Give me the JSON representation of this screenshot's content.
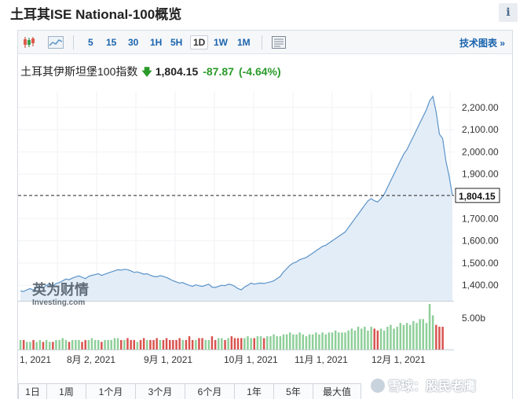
{
  "page": {
    "title": "土耳其ISE National-100概览",
    "info_icon": "i"
  },
  "toolbar": {
    "icons": [
      "candlestick-icon",
      "area-chart-icon",
      "settings-panel-icon"
    ],
    "ranges": [
      "5",
      "15",
      "30",
      "1H",
      "5H",
      "1D",
      "1W",
      "1M"
    ],
    "active_range": "1D",
    "tech_chart_link": "技术图表 »"
  },
  "quote": {
    "name": "土耳其伊斯坦堡100指数",
    "price": "1,804.15",
    "change": "-87.87",
    "change_pct": "(-4.64%)",
    "direction": "down"
  },
  "logo": {
    "text_cn": "英为财情",
    "text_en": "Investing.com"
  },
  "chart_data": {
    "type": "area",
    "current_value_label": "1,804.15",
    "current_value": 1804.15,
    "y_ticks": [
      "2,200.00",
      "2,100.00",
      "2,000.00",
      "1,900.00",
      "1,700.00",
      "1,600.00",
      "1,500.00",
      "1,400.00"
    ],
    "y_tick_values": [
      2200,
      2100,
      2000,
      1900,
      1700,
      1600,
      1500,
      1400
    ],
    "ylim": [
      1330,
      2270
    ],
    "x_ticks": [
      "1, 2021",
      "8月 2, 2021",
      "9月 1, 2021",
      "10月 1, 2021",
      "11月 1, 2021",
      "12月 1, 2021"
    ],
    "volume_label": "5.00b",
    "price_series": [
      1375,
      1372,
      1380,
      1385,
      1378,
      1390,
      1395,
      1388,
      1400,
      1405,
      1398,
      1408,
      1412,
      1420,
      1428,
      1425,
      1432,
      1438,
      1442,
      1436,
      1430,
      1440,
      1445,
      1448,
      1452,
      1444,
      1450,
      1455,
      1460,
      1465,
      1470,
      1468,
      1472,
      1470,
      1465,
      1458,
      1460,
      1455,
      1450,
      1452,
      1445,
      1440,
      1438,
      1443,
      1440,
      1435,
      1428,
      1420,
      1415,
      1410,
      1412,
      1405,
      1400,
      1395,
      1402,
      1398,
      1395,
      1400,
      1405,
      1392,
      1390,
      1395,
      1400,
      1398,
      1405,
      1402,
      1395,
      1385,
      1380,
      1392,
      1400,
      1410,
      1405,
      1408,
      1410,
      1408,
      1412,
      1415,
      1420,
      1430,
      1440,
      1460,
      1475,
      1490,
      1500,
      1505,
      1515,
      1520,
      1525,
      1535,
      1545,
      1555,
      1565,
      1575,
      1580,
      1590,
      1600,
      1610,
      1620,
      1630,
      1640,
      1660,
      1680,
      1700,
      1720,
      1740,
      1760,
      1780,
      1790,
      1780,
      1775,
      1790,
      1810,
      1840,
      1870,
      1900,
      1930,
      1960,
      1990,
      2010,
      2040,
      2070,
      2100,
      2130,
      2160,
      2190,
      2230,
      2250,
      2180,
      2080,
      2060,
      1960,
      1890,
      1804
    ],
    "volume_series": [
      0.5,
      0.5,
      0.4,
      0.4,
      0.5,
      0.4,
      0.5,
      0.4,
      0.5,
      0.4,
      0.4,
      0.5,
      0.5,
      0.6,
      0.5,
      0.4,
      0.5,
      0.5,
      0.5,
      0.4,
      0.5,
      0.5,
      0.6,
      0.5,
      0.5,
      0.4,
      0.5,
      0.5,
      0.5,
      0.6,
      0.6,
      0.5,
      0.5,
      0.6,
      0.5,
      0.5,
      0.4,
      0.5,
      0.6,
      0.5,
      0.5,
      0.5,
      0.6,
      0.5,
      0.5,
      0.6,
      0.5,
      0.5,
      0.5,
      0.6,
      0.5,
      0.5,
      0.7,
      0.5,
      0.5,
      0.6,
      0.6,
      0.5,
      0.5,
      0.7,
      0.5,
      0.6,
      0.6,
      0.5,
      0.6,
      0.7,
      0.6,
      0.6,
      0.6,
      0.6,
      0.7,
      0.6,
      0.6,
      0.7,
      0.7,
      0.6,
      0.7,
      0.7,
      0.8,
      0.7,
      0.7,
      0.8,
      0.8,
      0.9,
      0.8,
      0.8,
      0.9,
      0.8,
      0.7,
      0.8,
      0.8,
      0.9,
      0.8,
      0.9,
      0.8,
      0.9,
      0.9,
      1.0,
      0.9,
      0.9,
      0.9,
      1.0,
      1.1,
      1.0,
      1.2,
      1.1,
      1.2,
      1.0,
      1.2,
      1.1,
      1.0,
      1.1,
      1.0,
      1.2,
      1.3,
      1.1,
      1.2,
      1.4,
      1.3,
      1.4,
      1.3,
      1.5,
      1.4,
      1.6,
      1.6,
      1.4,
      2.4,
      1.8,
      1.3,
      1.2,
      1.2
    ],
    "volume_max": 2.4
  },
  "period_tabs": [
    "1日",
    "1周",
    "1个月",
    "3个月",
    "6个月",
    "1年",
    "5年",
    "最大值"
  ],
  "watermark": "雪球：股民老鹰",
  "colors": {
    "accent_blue": "#1a64ad",
    "line": "#5b93c9",
    "area_fill": "#e3edf7",
    "down_green": "#2a9a2a",
    "vol_up": "#8fcf9a",
    "vol_down": "#d9534f"
  }
}
